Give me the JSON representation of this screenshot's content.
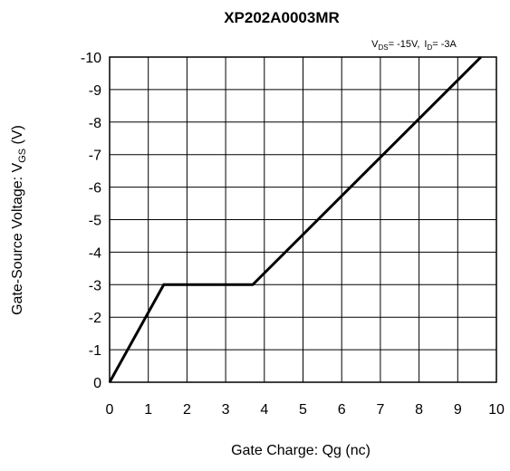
{
  "chart_data": {
    "type": "line",
    "title": "XP202A0003MR",
    "subtitle": {
      "vds_symbol": "V",
      "vds_sub": "DS",
      "vds_value": "= -15V,",
      "id_symbol": "I",
      "id_sub": "D",
      "id_value": "= -3A"
    },
    "xlabel": "Gate Charge: Qg  (nc)",
    "ylabel": {
      "main": "Gate-Source Voltage:  V",
      "sub": "GS",
      "unit": "  (V)"
    },
    "xlim": [
      0,
      10
    ],
    "ylim": [
      0,
      -10
    ],
    "x_ticks": [
      "0",
      "1",
      "2",
      "3",
      "4",
      "5",
      "6",
      "7",
      "8",
      "9",
      "10"
    ],
    "y_ticks": [
      "-10",
      "-9",
      "-8",
      "-7",
      "-6",
      "-5",
      "-4",
      "-3",
      "-2",
      "-1",
      "0"
    ],
    "grid": true,
    "series": [
      {
        "x": [
          0,
          1.4,
          3.7,
          9.6
        ],
        "y": [
          0,
          -3,
          -3,
          -10
        ]
      }
    ]
  }
}
